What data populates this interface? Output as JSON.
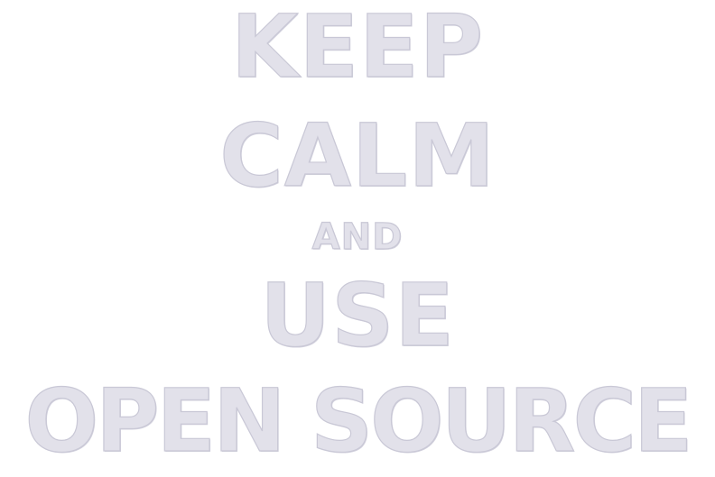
{
  "poster": {
    "line1": "KEEP",
    "line2": "CALM",
    "line3": "AND",
    "line4": "USE",
    "line5": "OPEN SOURCE"
  },
  "colors": {
    "background": "#ffffff",
    "text_fill": "#e2e1ea",
    "text_outline": "#c9c8d6"
  }
}
